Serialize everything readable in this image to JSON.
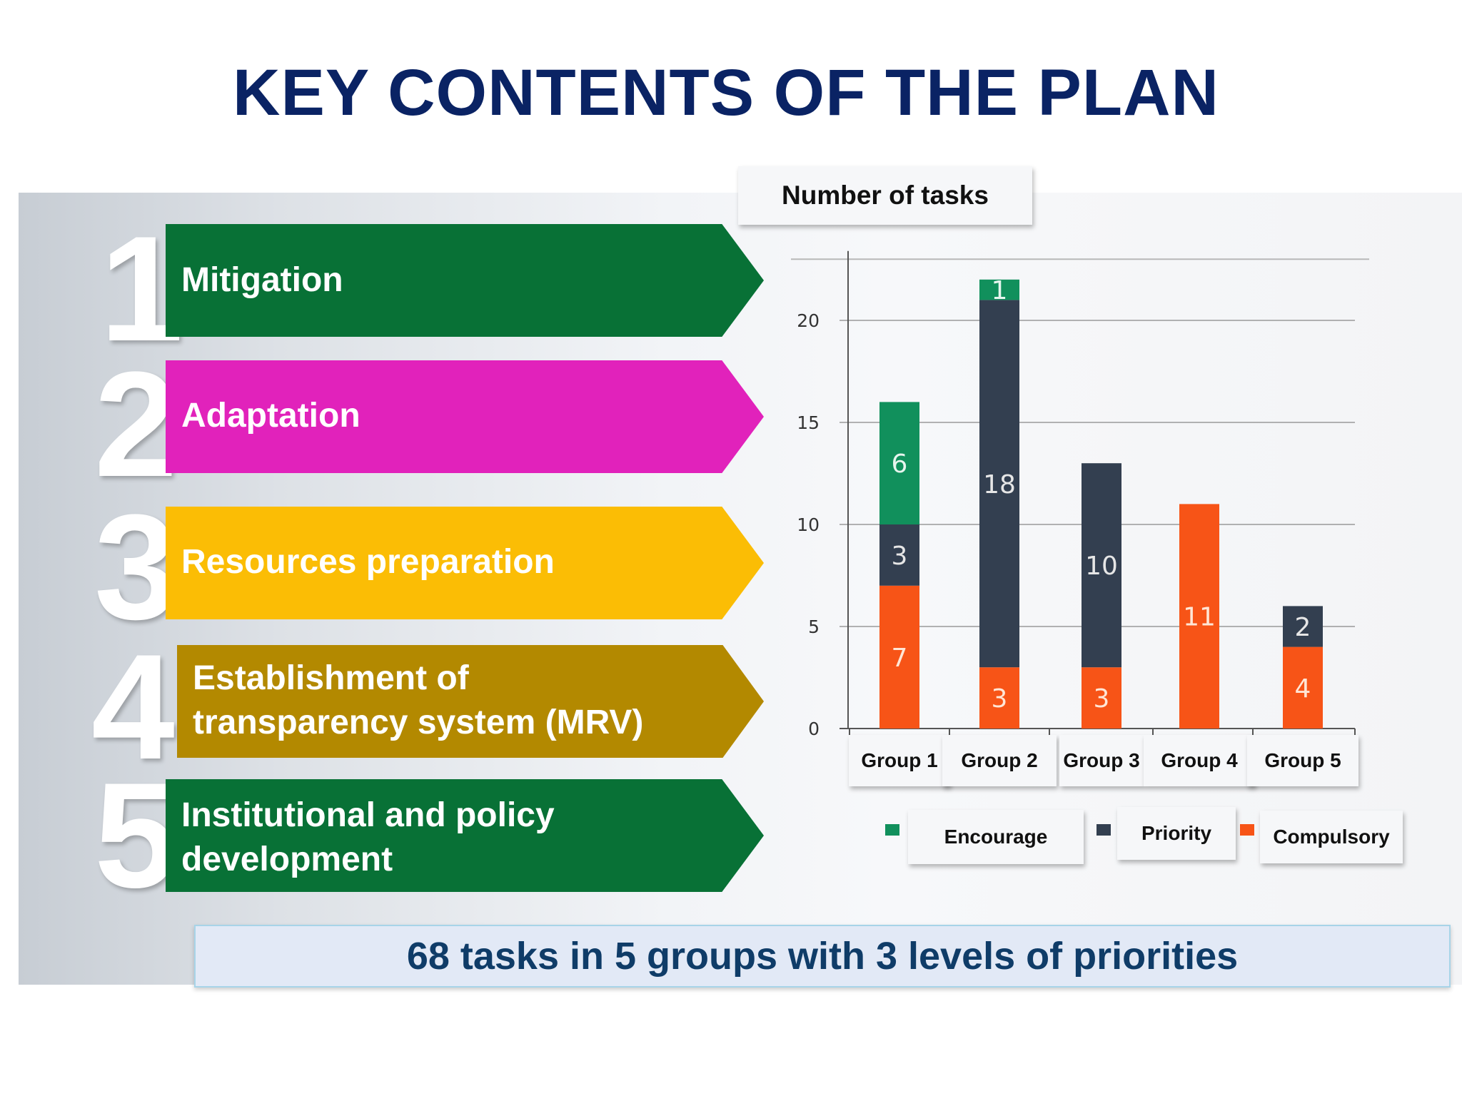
{
  "title": "KEY CONTENTS OF THE PLAN",
  "plan_items": [
    {
      "number": "1",
      "label_lines": [
        "Mitigation"
      ],
      "color": "#087136"
    },
    {
      "number": "2",
      "label_lines": [
        "Adaptation"
      ],
      "color": "#e122bb"
    },
    {
      "number": "3",
      "label_lines": [
        "Resources preparation"
      ],
      "color": "#fbbd05"
    },
    {
      "number": "4",
      "label_lines": [
        "Establishment of",
        "transparency system (MRV)"
      ],
      "color": "#b38900"
    },
    {
      "number": "5",
      "label_lines": [
        "Institutional and policy",
        "development"
      ],
      "color": "#087136"
    }
  ],
  "chart_data": {
    "type": "bar",
    "stacked": true,
    "title": "Number of tasks",
    "categories": [
      "Group 1",
      "Group 2",
      "Group 3",
      "Group 4",
      "Group 5"
    ],
    "series": [
      {
        "name": "Compulsory",
        "color": "#f75417",
        "values": [
          7,
          3,
          3,
          11,
          4
        ]
      },
      {
        "name": "Priority",
        "color": "#333f50",
        "values": [
          3,
          18,
          10,
          0,
          2
        ]
      },
      {
        "name": "Encourage",
        "color": "#11905c",
        "values": [
          6,
          1,
          0,
          0,
          0
        ]
      }
    ],
    "legend_order": [
      "Encourage",
      "Priority",
      "Compulsory"
    ],
    "ylim": [
      0,
      24
    ],
    "yticks": [
      0,
      5,
      10,
      15,
      20
    ],
    "grid": true,
    "legend_position": "bottom"
  },
  "summary": "68 tasks in 5 groups with 3 levels of priorities"
}
